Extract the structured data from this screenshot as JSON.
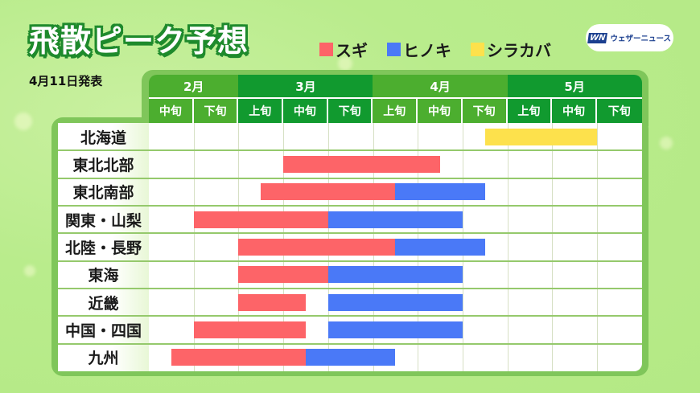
{
  "header": {
    "title": "飛散ピーク予想",
    "date": "4月11日発表",
    "logo_mark": "WN",
    "logo_text": "ウェザーニュース"
  },
  "legend": [
    {
      "label": "スギ",
      "color": "#fd6468"
    },
    {
      "label": "ヒノキ",
      "color": "#4a79f7"
    },
    {
      "label": "シラカバ",
      "color": "#fde14c"
    }
  ],
  "colors": {
    "background": "#b9ec8c",
    "frame": "#7fc65a",
    "header_light": "#4cae2f",
    "header_dark": "#119a2f",
    "sugi": "#fd6468",
    "hinoki": "#4a79f7",
    "shirakaba": "#fde14c"
  },
  "months": [
    {
      "label": "2月",
      "span": 2
    },
    {
      "label": "3月",
      "span": 3
    },
    {
      "label": "4月",
      "span": 3
    },
    {
      "label": "5月",
      "span": 3
    }
  ],
  "periods": [
    "中旬",
    "下旬",
    "上旬",
    "中旬",
    "下旬",
    "上旬",
    "中旬",
    "下旬",
    "上旬",
    "中旬",
    "下旬"
  ],
  "regions": [
    "北海道",
    "東北北部",
    "東北南部",
    "関東・山梨",
    "北陸・長野",
    "東海",
    "近畿",
    "中国・四国",
    "九州"
  ],
  "chart_data": {
    "type": "gantt",
    "title": "飛散ピーク予想",
    "subtitle": "4月11日発表",
    "x_axis": {
      "unit": "旬 (10-day period), index 0 = 2月中旬 … 10 = 5月下旬",
      "ticks": [
        "2月中旬",
        "2月下旬",
        "3月上旬",
        "3月中旬",
        "3月下旬",
        "4月上旬",
        "4月中旬",
        "4月下旬",
        "5月上旬",
        "5月中旬",
        "5月下旬"
      ],
      "range": [
        0,
        11
      ]
    },
    "categories": [
      "北海道",
      "東北北部",
      "東北南部",
      "関東・山梨",
      "北陸・長野",
      "東海",
      "近畿",
      "中国・四国",
      "九州"
    ],
    "legend": [
      "スギ",
      "ヒノキ",
      "シラカバ"
    ],
    "series": [
      {
        "name": "スギ",
        "color": "#fd6468",
        "spans": [
          {
            "region": "東北北部",
            "start": 3.0,
            "end": 6.5
          },
          {
            "region": "東北南部",
            "start": 2.5,
            "end": 5.5
          },
          {
            "region": "関東・山梨",
            "start": 1.0,
            "end": 4.0
          },
          {
            "region": "北陸・長野",
            "start": 2.0,
            "end": 5.5
          },
          {
            "region": "東海",
            "start": 2.0,
            "end": 4.0
          },
          {
            "region": "近畿",
            "start": 2.0,
            "end": 3.5
          },
          {
            "region": "中国・四国",
            "start": 1.0,
            "end": 3.5
          },
          {
            "region": "九州",
            "start": 0.5,
            "end": 3.5
          }
        ]
      },
      {
        "name": "ヒノキ",
        "color": "#4a79f7",
        "spans": [
          {
            "region": "東北南部",
            "start": 5.5,
            "end": 7.5
          },
          {
            "region": "関東・山梨",
            "start": 4.0,
            "end": 7.0
          },
          {
            "region": "北陸・長野",
            "start": 5.5,
            "end": 7.5
          },
          {
            "region": "東海",
            "start": 4.0,
            "end": 7.0
          },
          {
            "region": "近畿",
            "start": 4.0,
            "end": 7.0
          },
          {
            "region": "中国・四国",
            "start": 4.0,
            "end": 7.0
          },
          {
            "region": "九州",
            "start": 3.5,
            "end": 5.5
          }
        ]
      },
      {
        "name": "シラカバ",
        "color": "#fde14c",
        "spans": [
          {
            "region": "北海道",
            "start": 7.5,
            "end": 10.0
          }
        ]
      }
    ]
  }
}
